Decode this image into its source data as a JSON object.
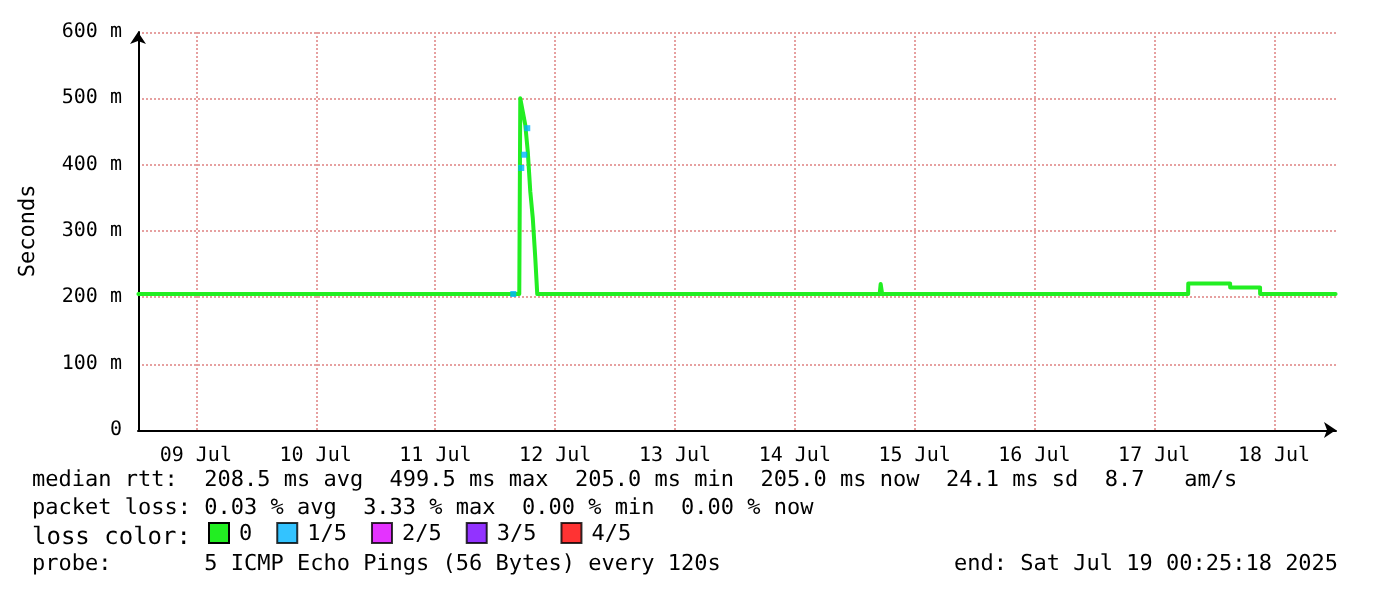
{
  "chart_data": {
    "type": "line",
    "ylabel": "Seconds",
    "legend_title": "loss color:",
    "legend": "bottom",
    "grid": true,
    "marker": "none",
    "line_style": "solid",
    "xlim": [
      "2025-07-09T00:25",
      "2025-07-19T00:25"
    ],
    "xticks": [
      {
        "value": "2025-07-09T12:00",
        "label": "09 Jul"
      },
      {
        "value": "2025-07-10T12:00",
        "label": "10 Jul"
      },
      {
        "value": "2025-07-11T12:00",
        "label": "11 Jul"
      },
      {
        "value": "2025-07-12T12:00",
        "label": "12 Jul"
      },
      {
        "value": "2025-07-13T12:00",
        "label": "13 Jul"
      },
      {
        "value": "2025-07-14T12:00",
        "label": "14 Jul"
      },
      {
        "value": "2025-07-15T12:00",
        "label": "15 Jul"
      },
      {
        "value": "2025-07-16T12:00",
        "label": "16 Jul"
      },
      {
        "value": "2025-07-17T12:00",
        "label": "17 Jul"
      },
      {
        "value": "2025-07-18T12:00",
        "label": "18 Jul"
      }
    ],
    "ylim": [
      0,
      600
    ],
    "yticks": [
      0,
      {
        "value": 100,
        "label": "100 m"
      },
      {
        "value": 200,
        "label": "200 m"
      },
      {
        "value": 300,
        "label": "300 m"
      },
      {
        "value": 400,
        "label": "400 m"
      },
      {
        "value": 500,
        "label": "500 m"
      },
      {
        "value": 600,
        "label": "600 m"
      }
    ],
    "series": [
      {
        "name": "0",
        "color": "#22ee22",
        "x": [
          "2025-07-09T00:30",
          "2025-07-12T04:48",
          "2025-07-12T05:00",
          "2025-07-12T05:30",
          "2025-07-12T06:00",
          "2025-07-12T06:30",
          "2025-07-12T07:00",
          "2025-07-12T07:30",
          "2025-07-12T08:00",
          "2025-07-12T08:24",
          "2025-07-15T05:00",
          "2025-07-15T05:12",
          "2025-07-15T05:30",
          "2025-07-17T18:48",
          "2025-07-17T18:49",
          "2025-07-18T03:12",
          "2025-07-18T03:13",
          "2025-07-18T09:12",
          "2025-07-18T09:13",
          "2025-07-19T00:20"
        ],
        "values": [
          205,
          205,
          500,
          480,
          460,
          420,
          360,
          320,
          260,
          205,
          205,
          220,
          205,
          205,
          221,
          221,
          215,
          215,
          205,
          205
        ]
      },
      {
        "name": "1/5",
        "type": "scatter",
        "marker": "square",
        "color": "#00b4ff",
        "x": [
          "2025-07-12T03:36",
          "2025-07-12T05:12",
          "2025-07-12T05:48",
          "2025-07-12T06:24"
        ],
        "values": [
          205,
          395,
          415,
          455
        ]
      },
      {
        "name": "2/5",
        "type": "scatter",
        "marker": "square",
        "color": "#dd00ff"
      },
      {
        "name": "3/5",
        "type": "scatter",
        "marker": "square",
        "color": "#7700ff"
      },
      {
        "name": "4/5",
        "type": "scatter",
        "marker": "square",
        "color": "#ff0000"
      }
    ],
    "annotations": [
      "median rtt:  208.5 ms avg  499.5 ms max  205.0 ms min  205.0 ms now  24.1 ms sd  8.7   am/s",
      "packet loss: 0.03 % avg  3.33 % max  0.00 % min  0.00 % now",
      "probe:       5 ICMP Echo Pings (56 Bytes) every 120s",
      "end: Sat Jul 19 00:25:18 2025"
    ]
  }
}
